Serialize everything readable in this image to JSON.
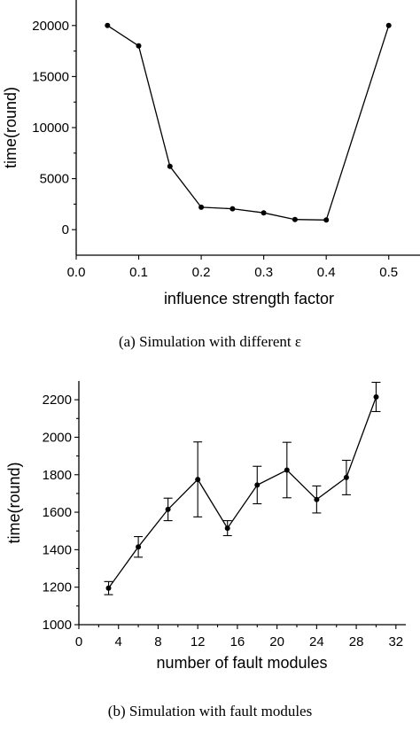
{
  "chart_data": [
    {
      "type": "line",
      "caption": "(a) Simulation with different ε",
      "xlabel": "influence strength factor",
      "ylabel": "time(round)",
      "xlim": [
        0.0,
        0.55
      ],
      "ylim": [
        -2500,
        22500
      ],
      "x_ticks": [
        "0.0",
        "0.1",
        "0.2",
        "0.3",
        "0.4",
        "0.5"
      ],
      "y_ticks": [
        "0",
        "5000",
        "10000",
        "15000",
        "20000"
      ],
      "grid": false,
      "series": [
        {
          "x": [
            0.05,
            0.1,
            0.15,
            0.2,
            0.25,
            0.3,
            0.35,
            0.4,
            0.5
          ],
          "y": [
            20000,
            18000,
            6200,
            2200,
            2050,
            1650,
            1000,
            950,
            20000
          ]
        }
      ]
    },
    {
      "type": "line",
      "caption": "(b) Simulation with fault modules",
      "xlabel": "number of fault modules",
      "ylabel": "time(round)",
      "xlim": [
        0,
        33
      ],
      "ylim": [
        1000,
        2300
      ],
      "x_ticks": [
        "0",
        "4",
        "8",
        "12",
        "16",
        "20",
        "24",
        "28",
        "32"
      ],
      "y_ticks": [
        "1000",
        "1200",
        "1400",
        "1600",
        "1800",
        "2000",
        "2200"
      ],
      "grid": false,
      "series": [
        {
          "x": [
            3,
            6,
            9,
            12,
            15,
            18,
            21,
            24,
            27,
            30
          ],
          "y": [
            1195,
            1415,
            1615,
            1775,
            1515,
            1745,
            1825,
            1668,
            1785,
            2215
          ],
          "error": [
            35,
            55,
            60,
            200,
            40,
            100,
            148,
            72,
            92,
            78
          ]
        }
      ]
    }
  ]
}
